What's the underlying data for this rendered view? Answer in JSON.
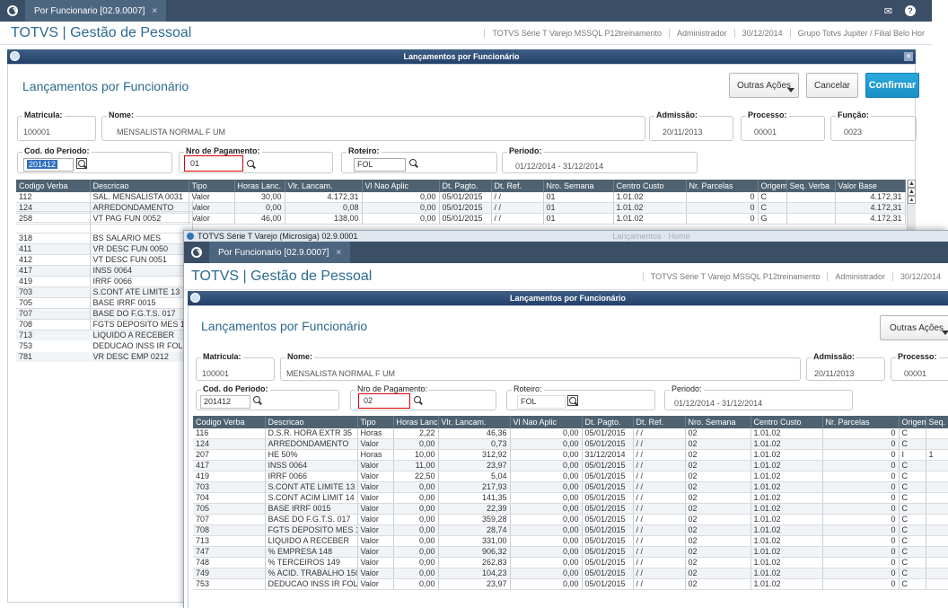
{
  "back": {
    "tab_label": "Por Funcionario [02.9.0007]",
    "tab_close": "×",
    "brand": "TOTVS | Gestão de Pessoal",
    "env": [
      "TOTVS Série T Varejo MSSQL P12treinamento",
      "Administrador",
      "30/12/2014",
      "Grupo Totvs Jupiter / Filial Belo Hor"
    ],
    "window_title": "Lançamentos por Funcionário",
    "window_close": "×",
    "form_title": "Lançamentos por Funcionário",
    "buttons": {
      "outras": "Outras Ações",
      "cancelar": "Cancelar",
      "confirmar": "Confirmar"
    },
    "fields": {
      "matricula": {
        "label": "Matricula:",
        "value": "100001"
      },
      "nome": {
        "label": "Nome:",
        "value": "MENSALISTA NORMAL F UM"
      },
      "admissao": {
        "label": "Admissão:",
        "value": "20/11/2013"
      },
      "processo": {
        "label": "Processo:",
        "value": "00001"
      },
      "funcao": {
        "label": "Função:",
        "value": "0023"
      },
      "periodo_cod": {
        "label": "Cod. do Periodo:",
        "value": "201412"
      },
      "nro_pagamento": {
        "label": "Nro de Pagamento:",
        "value": "01"
      },
      "roteiro": {
        "label": "Roteiro:",
        "value": "FOL"
      },
      "periodo": {
        "label": "Periodo:",
        "value": "01/12/2014 - 31/12/2014"
      }
    },
    "columns": [
      "Codigo Verba",
      "Descricao",
      "Tipo",
      "Horas Lanc.",
      "Vlr. Lancam.",
      "Vl Nao Aplic",
      "Dt. Pagto.",
      "Dt. Ref.",
      "Nro. Semana",
      "Centro Custo",
      "Nr. Parcelas",
      "Origem",
      "Seq. Verba",
      "Valor Base"
    ],
    "rows": [
      [
        "112",
        "SAL. MENSALISTA 0031",
        "Valor",
        "30,00",
        "4.172,31",
        "0,00",
        "05/01/2015",
        "/ /",
        "01",
        "1.01.02",
        "0",
        "C",
        "",
        "4.172,31"
      ],
      [
        "124",
        "ARREDONDAMENTO",
        "Valor",
        "0,00",
        "0,08",
        "0,00",
        "05/01/2015",
        "/ /",
        "01",
        "1.01.02",
        "0",
        "C",
        "",
        "4.172,31"
      ],
      [
        "258",
        "VT PAG FUN 0052",
        "Valor",
        "46,00",
        "138,00",
        "0,00",
        "05/01/2015",
        "/ /",
        "01",
        "1.01.02",
        "0",
        "G",
        "",
        "4.172,31"
      ]
    ],
    "left_rows": [
      [
        "318",
        "BS SALARIO MES"
      ],
      [
        "411",
        "VR DESC FUN 0050"
      ],
      [
        "412",
        "VT DESC FUN 0051"
      ],
      [
        "417",
        "INSS 0064"
      ],
      [
        "419",
        "IRRF 0066"
      ],
      [
        "703",
        "S.CONT ATE LIMITE 13"
      ],
      [
        "705",
        "BASE IRRF 0015"
      ],
      [
        "707",
        "BASE DO F.G.T.S. 017"
      ],
      [
        "708",
        "FGTS DEPOSITO MES 18"
      ],
      [
        "713",
        "LIQUIDO A RECEBER"
      ],
      [
        "753",
        "DEDUCAO INSS IR FOLH"
      ],
      [
        "781",
        "VR DESC EMP 0212"
      ]
    ]
  },
  "front": {
    "caption": "TOTVS Série T Varejo (Microsiga) 02.9.0001",
    "caption_faded": "Lançamentos · Home",
    "tab_label": "Por Funcionario [02.9.0007]",
    "tab_close": "×",
    "brand": "TOTVS | Gestão de Pessoal",
    "env": [
      "TOTVS Série T Varejo MSSQL P12treinamento",
      "Administrador",
      "30/12/2014"
    ],
    "window_title": "Lançamentos por Funcionário",
    "form_title": "Lançamentos por Funcionário",
    "buttons": {
      "outras": "Outras Ações"
    },
    "fields": {
      "matricula": {
        "label": "Matricula:",
        "value": "100001"
      },
      "nome": {
        "label": "Nome:",
        "value": "MENSALISTA NORMAL F UM"
      },
      "admissao": {
        "label": "Admissão:",
        "value": "20/11/2013"
      },
      "processo": {
        "label": "Processo:",
        "value": "00001"
      },
      "periodo_cod": {
        "label": "Cod. do Periodo:",
        "value": "201412"
      },
      "nro_pagamento": {
        "label": "Nro de Pagamento:",
        "value": "02"
      },
      "roteiro": {
        "label": "Roteiro:",
        "value": "FOL"
      },
      "periodo": {
        "label": "Periodo:",
        "value": "01/12/2014 - 31/12/2014"
      }
    },
    "columns": [
      "Codigo Verba",
      "Descricao",
      "Tipo",
      "Horas Lanc.",
      "Vlr. Lancam.",
      "Vl Nao Aplic",
      "Dt. Pagto.",
      "Dt. Ref.",
      "Nro. Semana",
      "Centro Custo",
      "Nr. Parcelas",
      "Origem",
      "Seq."
    ],
    "rows": [
      [
        "116",
        "D.S.R. HORA EXTR 35",
        "Horas",
        "2,22",
        "46,36",
        "0,00",
        "05/01/2015",
        "/ /",
        "02",
        "1.01.02",
        "0",
        "C",
        ""
      ],
      [
        "124",
        "ARREDONDAMENTO",
        "Valor",
        "0,00",
        "0,73",
        "0,00",
        "05/01/2015",
        "/ /",
        "02",
        "1.01.02",
        "0",
        "C",
        ""
      ],
      [
        "207",
        "HE 50%",
        "Horas",
        "10,00",
        "312,92",
        "0,00",
        "31/12/2014",
        "/ /",
        "02",
        "1.01.02",
        "0",
        "I",
        "1"
      ],
      [
        "417",
        "INSS 0064",
        "Valor",
        "11,00",
        "23,97",
        "0,00",
        "05/01/2015",
        "/ /",
        "02",
        "1.01.02",
        "0",
        "C",
        ""
      ],
      [
        "419",
        "IRRF 0066",
        "Valor",
        "22,50",
        "5,04",
        "0,00",
        "05/01/2015",
        "/ /",
        "02",
        "1.01.02",
        "0",
        "C",
        ""
      ],
      [
        "703",
        "S.CONT ATE LIMITE 13",
        "Valor",
        "0,00",
        "217,93",
        "0,00",
        "05/01/2015",
        "/ /",
        "02",
        "1.01.02",
        "0",
        "C",
        ""
      ],
      [
        "704",
        "S.CONT ACIM LIMIT 14",
        "Valor",
        "0,00",
        "141,35",
        "0,00",
        "05/01/2015",
        "/ /",
        "02",
        "1.01.02",
        "0",
        "C",
        ""
      ],
      [
        "705",
        "BASE IRRF 0015",
        "Valor",
        "0,00",
        "22,39",
        "0,00",
        "05/01/2015",
        "/ /",
        "02",
        "1.01.02",
        "0",
        "C",
        ""
      ],
      [
        "707",
        "BASE DO F.G.T.S. 017",
        "Valor",
        "0,00",
        "359,28",
        "0,00",
        "05/01/2015",
        "/ /",
        "02",
        "1.01.02",
        "0",
        "C",
        ""
      ],
      [
        "708",
        "FGTS DEPOSITO MES 18",
        "Valor",
        "0,00",
        "28,74",
        "0,00",
        "05/01/2015",
        "/ /",
        "02",
        "1.01.02",
        "0",
        "C",
        ""
      ],
      [
        "713",
        "LIQUIDO A RECEBER",
        "Valor",
        "0,00",
        "331,00",
        "0,00",
        "05/01/2015",
        "/ /",
        "02",
        "1.01.02",
        "0",
        "C",
        ""
      ],
      [
        "747",
        "% EMPRESA  148",
        "Valor",
        "0,00",
        "906,32",
        "0,00",
        "05/01/2015",
        "/ /",
        "02",
        "1.01.02",
        "0",
        "C",
        ""
      ],
      [
        "748",
        "% TERCEIROS 149",
        "Valor",
        "0,00",
        "262,83",
        "0,00",
        "05/01/2015",
        "/ /",
        "02",
        "1.01.02",
        "0",
        "C",
        ""
      ],
      [
        "749",
        "% ACID. TRABALHO 150",
        "Valor",
        "0,00",
        "104,23",
        "0,00",
        "05/01/2015",
        "/ /",
        "02",
        "1.01.02",
        "0",
        "C",
        ""
      ],
      [
        "753",
        "DEDUCAO INSS IR FOLH",
        "Valor",
        "0,00",
        "23,97",
        "0,00",
        "05/01/2015",
        "/ /",
        "02",
        "1.01.02",
        "0",
        "C",
        ""
      ]
    ]
  },
  "icons": {
    "mail": "mail-icon",
    "help": "help-icon",
    "logo": "totvs-logo-icon",
    "lookup": "magnifier-icon"
  }
}
